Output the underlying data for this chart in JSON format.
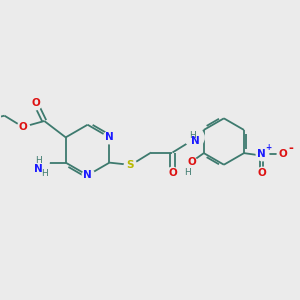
{
  "bg_color": "#ebebeb",
  "bond_color": "#3d7a6e",
  "n_color": "#1a1aff",
  "o_color": "#dd1111",
  "s_color": "#b8b800",
  "teal": "#3d7a6e",
  "figsize": [
    3.0,
    3.0
  ],
  "dpi": 100,
  "xlim": [
    0,
    10
  ],
  "ylim": [
    0,
    10
  ]
}
